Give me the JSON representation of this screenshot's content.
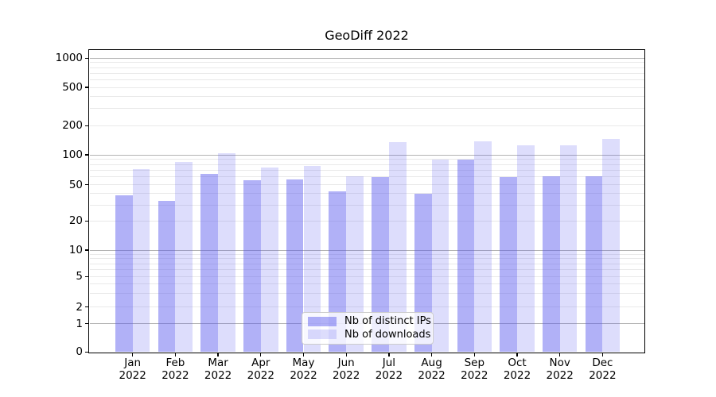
{
  "figure": {
    "background": "#ffffff"
  },
  "chart_data": {
    "type": "bar",
    "title": "GeoDiff 2022",
    "categories": [
      "Jan 2022",
      "Feb 2022",
      "Mar 2022",
      "Apr 2022",
      "May 2022",
      "Jun 2022",
      "Jul 2022",
      "Aug 2022",
      "Sep 2022",
      "Oct 2022",
      "Nov 2022",
      "Dec 2022"
    ],
    "x_tick_month": [
      "Jan",
      "Feb",
      "Mar",
      "Apr",
      "May",
      "Jun",
      "Jul",
      "Aug",
      "Sep",
      "Oct",
      "Nov",
      "Dec"
    ],
    "x_tick_year": "2022",
    "series": [
      {
        "name": "Nb of distinct IPs",
        "values": [
          38,
          33,
          64,
          56,
          57,
          42,
          60,
          40,
          90,
          60,
          61,
          61
        ],
        "color": "rgba(85,85,238,0.46)"
      },
      {
        "name": "Nb of downloads",
        "values": [
          72,
          85,
          104,
          74,
          77,
          61,
          135,
          90,
          137,
          126,
          125,
          146
        ],
        "color": "rgba(85,85,238,0.20)"
      }
    ],
    "yscale": "symlog",
    "ylim": [
      0,
      1300
    ],
    "y_tick_values": [
      0,
      1,
      2,
      5,
      10,
      20,
      50,
      100,
      200,
      500,
      1000
    ],
    "y_tick_labels": [
      "0",
      "1",
      "2",
      "5",
      "10",
      "20",
      "50",
      "100",
      "200",
      "500",
      "1000"
    ],
    "grid": true,
    "legend_position": "lower center"
  },
  "colors": {
    "major_grid": "#b3b3b3",
    "minor_grid": "#e9e9e9",
    "spine": "#000000",
    "bar_accent": "#5555ee"
  }
}
